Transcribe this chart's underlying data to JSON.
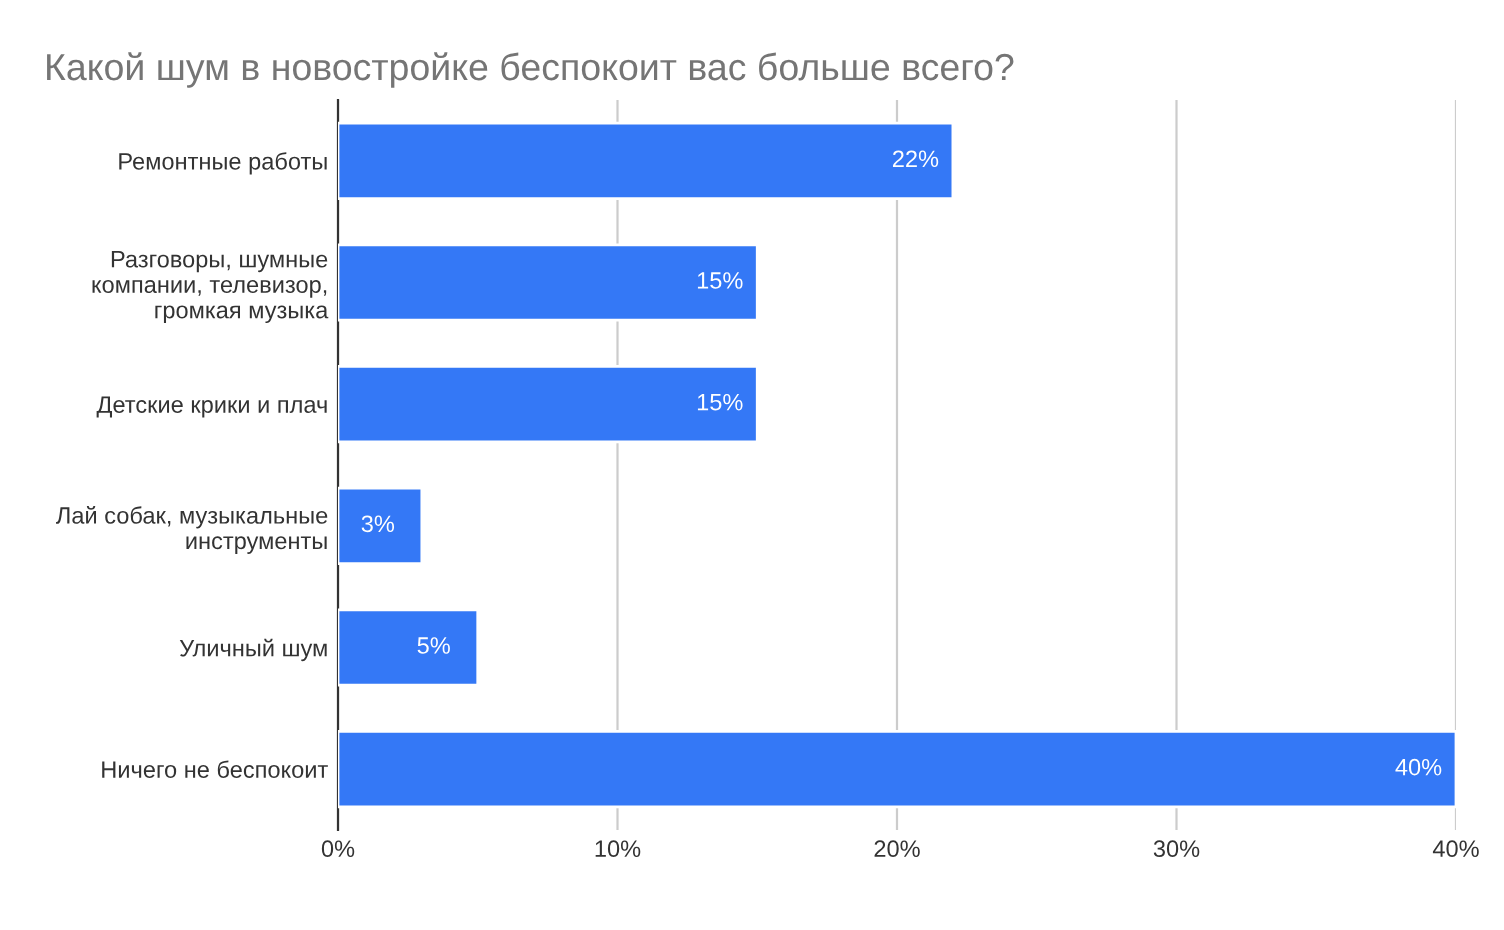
{
  "chart_data": {
    "type": "bar",
    "orientation": "horizontal",
    "title": "Какой шум в новостройке беспокоит вас больше всего?",
    "categories": [
      "Ремонтные работы",
      "Разговоры, шумные компании, телевизор, громкая музыка",
      "Детские крики и плач",
      "Лай собак, музыкальные инструменты",
      "Уличный шум",
      "Ничего не беспокоит"
    ],
    "values": [
      22,
      15,
      15,
      3,
      5,
      40
    ],
    "value_labels": [
      "22%",
      "15%",
      "15%",
      "3%",
      "5%",
      "40%"
    ],
    "color": "#3478f6",
    "xlim": [
      0,
      40
    ],
    "xticks": [
      {
        "value": 0,
        "label": "0%"
      },
      {
        "value": 10,
        "label": "10%"
      },
      {
        "value": 20,
        "label": "20%"
      },
      {
        "value": 30,
        "label": "30%"
      },
      {
        "value": 40,
        "label": "40%"
      }
    ],
    "grid": "x",
    "legend": false
  }
}
